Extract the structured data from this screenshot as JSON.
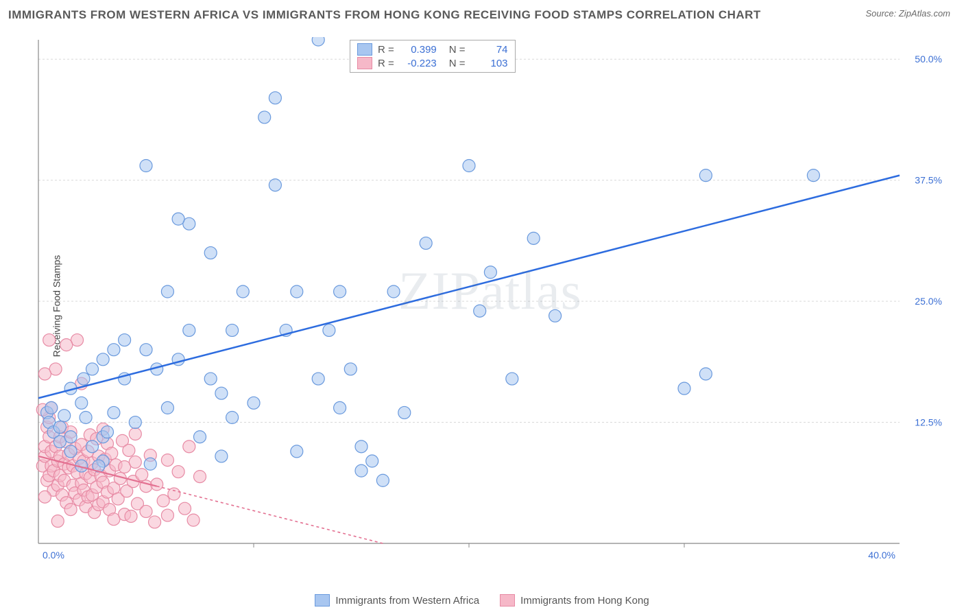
{
  "title": "IMMIGRANTS FROM WESTERN AFRICA VS IMMIGRANTS FROM HONG KONG RECEIVING FOOD STAMPS CORRELATION CHART",
  "source": "Source: ZipAtlas.com",
  "watermark": "ZIPatlas",
  "y_axis_label": "Receiving Food Stamps",
  "chart": {
    "type": "scatter",
    "xlim": [
      0,
      40
    ],
    "ylim": [
      0,
      52
    ],
    "x_ticks": [
      0,
      40
    ],
    "x_tick_labels": [
      "0.0%",
      "40.0%"
    ],
    "y_ticks": [
      12.5,
      25.0,
      37.5,
      50.0
    ],
    "y_tick_labels": [
      "12.5%",
      "25.0%",
      "37.5%",
      "50.0%"
    ],
    "grid_color": "#d9d9d9",
    "axis_color": "#888888",
    "label_color": "#3b6fd4",
    "background_color": "#ffffff",
    "series": [
      {
        "name": "Immigrants from Western Africa",
        "short": "western_africa",
        "fill": "#a8c6f0",
        "stroke": "#6999dd",
        "line_color": "#2d6cdf",
        "marker_radius": 9,
        "fill_opacity": 0.55,
        "R": "0.399",
        "N": "74",
        "trend": {
          "x1": 0,
          "y1": 15,
          "x2": 40,
          "y2": 38,
          "dash": "none"
        },
        "points": [
          [
            0.4,
            13.5
          ],
          [
            0.5,
            12.5
          ],
          [
            0.6,
            14
          ],
          [
            0.7,
            11.5
          ],
          [
            1,
            10.5
          ],
          [
            1,
            12
          ],
          [
            1.2,
            13.2
          ],
          [
            1.5,
            9.5
          ],
          [
            1.5,
            16
          ],
          [
            1.5,
            11
          ],
          [
            2,
            8
          ],
          [
            2,
            14.5
          ],
          [
            2.1,
            17
          ],
          [
            2.2,
            13
          ],
          [
            2.5,
            10
          ],
          [
            2.5,
            18
          ],
          [
            3,
            11
          ],
          [
            3,
            19
          ],
          [
            3,
            8.5
          ],
          [
            3.5,
            20
          ],
          [
            3.5,
            13.5
          ],
          [
            4,
            21
          ],
          [
            4,
            17
          ],
          [
            5,
            20
          ],
          [
            5,
            39
          ],
          [
            5.5,
            18
          ],
          [
            6,
            26
          ],
          [
            6,
            14
          ],
          [
            6.5,
            19
          ],
          [
            7,
            33
          ],
          [
            7,
            22
          ],
          [
            7.5,
            11
          ],
          [
            8,
            17
          ],
          [
            8,
            30
          ],
          [
            8.5,
            9
          ],
          [
            8.5,
            15.5
          ],
          [
            9,
            13
          ],
          [
            9,
            22
          ],
          [
            9.5,
            26
          ],
          [
            10,
            14.5
          ],
          [
            10.5,
            44
          ],
          [
            11,
            37
          ],
          [
            11,
            46
          ],
          [
            11.5,
            22
          ],
          [
            12,
            26
          ],
          [
            12,
            9.5
          ],
          [
            13,
            52
          ],
          [
            13,
            17
          ],
          [
            13.5,
            22
          ],
          [
            14,
            14
          ],
          [
            14,
            26
          ],
          [
            14.5,
            18
          ],
          [
            15,
            10
          ],
          [
            15,
            7.5
          ],
          [
            15.5,
            8.5
          ],
          [
            16,
            6.5
          ],
          [
            16.5,
            26
          ],
          [
            17,
            13.5
          ],
          [
            18,
            31
          ],
          [
            20,
            39
          ],
          [
            20.5,
            24
          ],
          [
            21,
            28
          ],
          [
            22,
            17
          ],
          [
            23,
            31.5
          ],
          [
            24,
            23.5
          ],
          [
            30,
            16
          ],
          [
            31,
            17.5
          ],
          [
            36,
            38
          ],
          [
            31,
            38
          ],
          [
            6.5,
            33.5
          ],
          [
            4.5,
            12.5
          ],
          [
            2.8,
            8
          ],
          [
            3.2,
            11.5
          ],
          [
            5.2,
            8.2
          ]
        ]
      },
      {
        "name": "Immigrants from Hong Kong",
        "short": "hong_kong",
        "fill": "#f6b8c8",
        "stroke": "#e78aa4",
        "line_color": "#e37091",
        "marker_radius": 9,
        "fill_opacity": 0.55,
        "R": "-0.223",
        "N": "103",
        "trend": {
          "x1": 0,
          "y1": 9,
          "x2": 16,
          "y2": 0,
          "dash": "4 4",
          "solid_until": 5.5
        },
        "points": [
          [
            0.2,
            8
          ],
          [
            0.3,
            9
          ],
          [
            0.3,
            10
          ],
          [
            0.4,
            12
          ],
          [
            0.4,
            6.5
          ],
          [
            0.5,
            7
          ],
          [
            0.5,
            11
          ],
          [
            0.5,
            13
          ],
          [
            0.6,
            9.5
          ],
          [
            0.6,
            8
          ],
          [
            0.6,
            14
          ],
          [
            0.7,
            5.5
          ],
          [
            0.7,
            7.5
          ],
          [
            0.8,
            10
          ],
          [
            0.8,
            18
          ],
          [
            0.9,
            8.5
          ],
          [
            0.9,
            6
          ],
          [
            1,
            11
          ],
          [
            1,
            9
          ],
          [
            1,
            7
          ],
          [
            1.1,
            12
          ],
          [
            1.1,
            5
          ],
          [
            1.2,
            8.2
          ],
          [
            1.2,
            6.5
          ],
          [
            1.3,
            10.5
          ],
          [
            1.3,
            4.2
          ],
          [
            1.4,
            7.8
          ],
          [
            1.4,
            9.2
          ],
          [
            1.5,
            11.5
          ],
          [
            1.5,
            3.5
          ],
          [
            1.6,
            8
          ],
          [
            1.6,
            6
          ],
          [
            1.7,
            9.8
          ],
          [
            1.7,
            5.2
          ],
          [
            1.8,
            21
          ],
          [
            1.8,
            7.3
          ],
          [
            1.9,
            8.8
          ],
          [
            1.9,
            4.5
          ],
          [
            2,
            16.5
          ],
          [
            2,
            6.2
          ],
          [
            2,
            10.2
          ],
          [
            2.1,
            5.5
          ],
          [
            2.1,
            8.5
          ],
          [
            2.2,
            3.8
          ],
          [
            2.2,
            7.2
          ],
          [
            2.3,
            9.5
          ],
          [
            2.3,
            4.8
          ],
          [
            2.4,
            6.8
          ],
          [
            2.4,
            11.2
          ],
          [
            2.5,
            5
          ],
          [
            2.5,
            8.3
          ],
          [
            2.6,
            3.2
          ],
          [
            2.6,
            7.6
          ],
          [
            2.7,
            10.8
          ],
          [
            2.7,
            5.8
          ],
          [
            2.8,
            9
          ],
          [
            2.8,
            4
          ],
          [
            2.9,
            7
          ],
          [
            3,
            6.3
          ],
          [
            3,
            11.8
          ],
          [
            3,
            4.3
          ],
          [
            3.1,
            8.7
          ],
          [
            3.2,
            5.3
          ],
          [
            3.2,
            10.3
          ],
          [
            3.3,
            3.5
          ],
          [
            3.3,
            7.5
          ],
          [
            3.4,
            9.3
          ],
          [
            3.5,
            5.7
          ],
          [
            3.5,
            2.5
          ],
          [
            3.6,
            8.1
          ],
          [
            3.7,
            4.6
          ],
          [
            3.8,
            6.7
          ],
          [
            3.9,
            10.6
          ],
          [
            4,
            3
          ],
          [
            4,
            7.9
          ],
          [
            4.1,
            5.4
          ],
          [
            4.2,
            9.6
          ],
          [
            4.3,
            2.8
          ],
          [
            4.4,
            6.4
          ],
          [
            4.5,
            8.4
          ],
          [
            4.5,
            11.3
          ],
          [
            4.6,
            4.1
          ],
          [
            4.8,
            7.1
          ],
          [
            5,
            5.9
          ],
          [
            5,
            3.3
          ],
          [
            5.2,
            9.1
          ],
          [
            5.4,
            2.2
          ],
          [
            5.5,
            6.1
          ],
          [
            5.8,
            4.4
          ],
          [
            6,
            8.6
          ],
          [
            6,
            2.9
          ],
          [
            6.3,
            5.1
          ],
          [
            6.5,
            7.4
          ],
          [
            6.8,
            3.6
          ],
          [
            7,
            10
          ],
          [
            7.2,
            2.4
          ],
          [
            7.5,
            6.9
          ],
          [
            0.3,
            17.5
          ],
          [
            0.5,
            21
          ],
          [
            1.3,
            20.5
          ],
          [
            0.2,
            13.8
          ],
          [
            0.3,
            4.8
          ],
          [
            0.9,
            2.3
          ]
        ]
      }
    ]
  },
  "legend_top": {
    "rows": [
      {
        "swatch_fill": "#a8c6f0",
        "swatch_stroke": "#6999dd",
        "R_label": "R =",
        "R_val": "0.399",
        "N_label": "N =",
        "N_val": "74"
      },
      {
        "swatch_fill": "#f6b8c8",
        "swatch_stroke": "#e78aa4",
        "R_label": "R =",
        "R_val": "-0.223",
        "N_label": "N =",
        "N_val": "103"
      }
    ]
  },
  "legend_bottom": [
    {
      "swatch_fill": "#a8c6f0",
      "swatch_stroke": "#6999dd",
      "label": "Immigrants from Western Africa"
    },
    {
      "swatch_fill": "#f6b8c8",
      "swatch_stroke": "#e78aa4",
      "label": "Immigrants from Hong Kong"
    }
  ]
}
